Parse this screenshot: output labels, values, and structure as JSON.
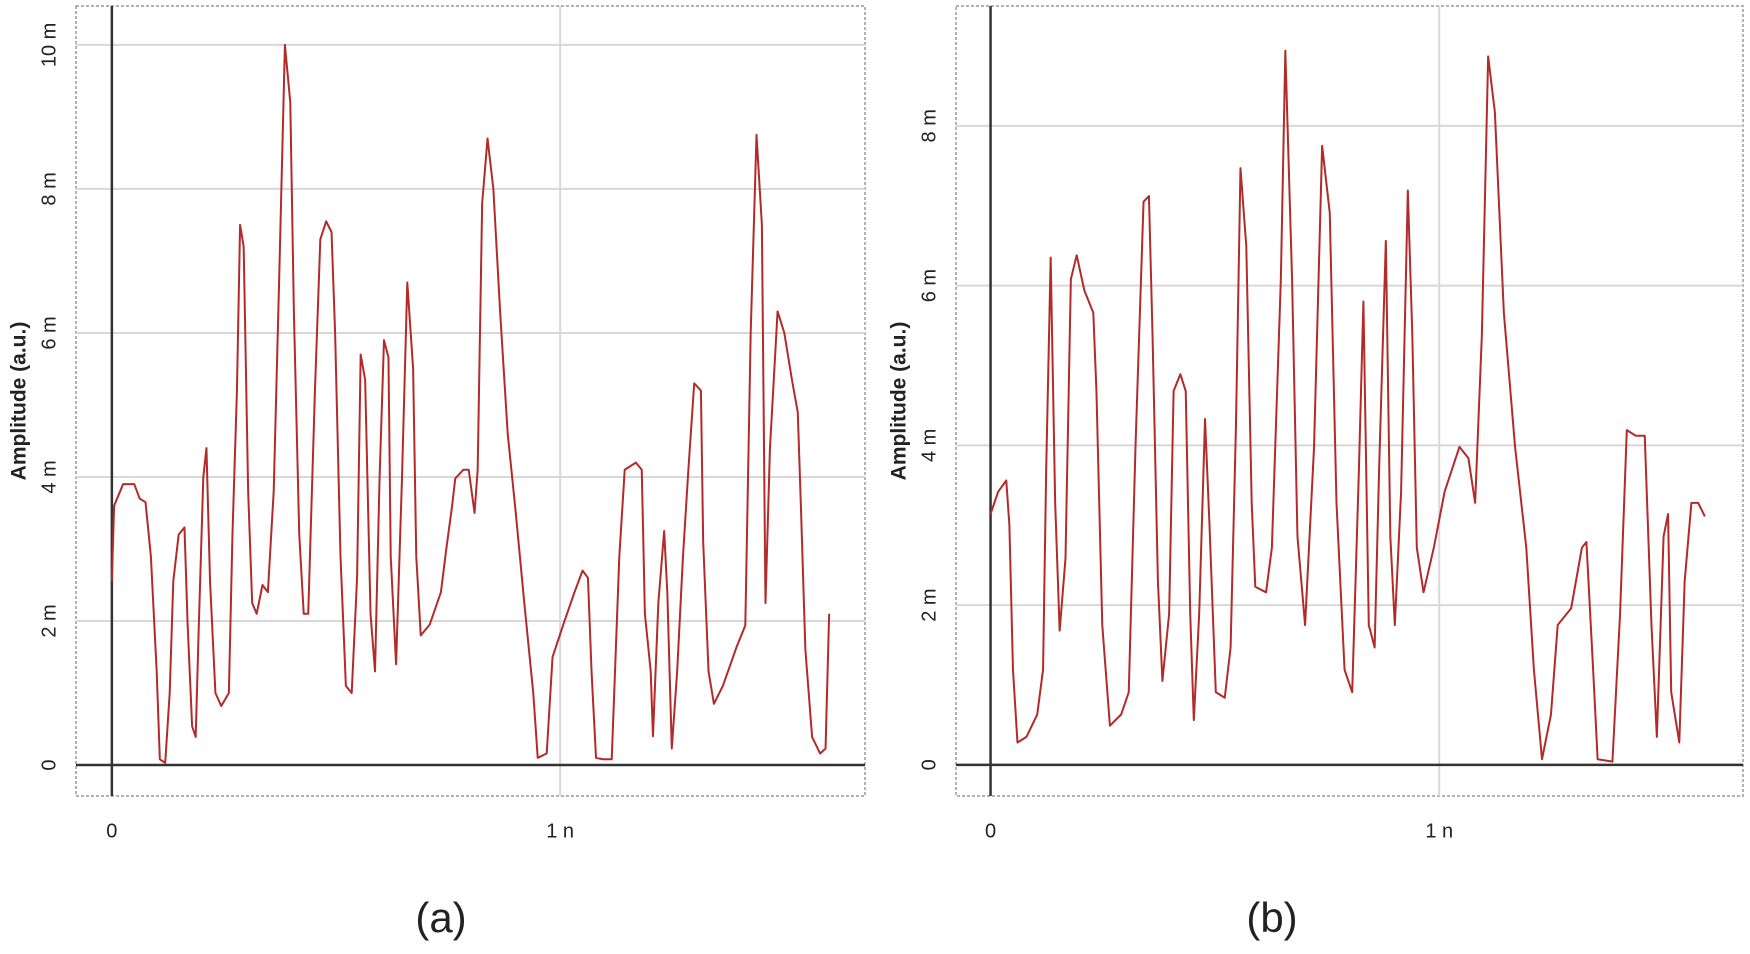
{
  "chart_data": [
    {
      "type": "line",
      "caption": "(a)",
      "y_label": "Amplitude (a.u.)",
      "xlim": [
        -8e-11,
        1.68e-09
      ],
      "ylim": [
        -0.00043,
        0.01054
      ],
      "xticks": [
        0,
        {
          "value": 1e-09,
          "label": "1 n"
        }
      ],
      "yticks": [
        0,
        {
          "value": 0.002,
          "label": "2 m"
        },
        {
          "value": 0.004,
          "label": "4 m"
        },
        {
          "value": 0.006,
          "label": "6 m"
        },
        {
          "value": 0.008,
          "label": "8 m"
        },
        {
          "value": 0.01,
          "label": "10 m"
        }
      ],
      "grid": true,
      "series": [
        {
          "color": "#b22a2a",
          "x": [
            0,
            5e-12,
            2.5e-11,
            5e-11,
            6.2e-11,
            7.5e-11,
            8.7e-11,
            1e-10,
            1.07e-10,
            1.19e-10,
            1.29e-10,
            1.37e-10,
            1.49e-10,
            1.62e-10,
            1.69e-10,
            1.79e-10,
            1.87e-10,
            1.94e-10,
            2.04e-10,
            2.11e-10,
            2.19e-10,
            2.31e-10,
            2.44e-10,
            2.61e-10,
            2.69e-10,
            2.79e-10,
            2.86e-10,
            2.94e-10,
            3.04e-10,
            3.13e-10,
            3.23e-10,
            3.36e-10,
            3.48e-10,
            3.61e-10,
            3.73e-10,
            3.86e-10,
            3.98e-10,
            4.06e-10,
            4.18e-10,
            4.28e-10,
            4.38e-10,
            4.53e-10,
            4.65e-10,
            4.78e-10,
            4.9e-10,
            4.98e-10,
            5.1e-10,
            5.22e-10,
            5.35e-10,
            5.47e-10,
            5.55e-10,
            5.65e-10,
            5.77e-10,
            5.87e-10,
            5.97e-10,
            6.07e-10,
            6.17e-10,
            6.22e-10,
            6.34e-10,
            6.47e-10,
            6.59e-10,
            6.72e-10,
            6.79e-10,
            6.89e-10,
            7.09e-10,
            7.34e-10,
            7.46e-10,
            7.59e-10,
            7.66e-10,
            7.84e-10,
            7.96e-10,
            8.09e-10,
            8.16e-10,
            8.26e-10,
            8.38e-10,
            8.51e-10,
            8.66e-10,
            8.83e-10,
            9.01e-10,
            9.2e-10,
            9.4e-10,
            9.5e-10,
            9.7e-10,
            9.83e-10,
            1.007e-09,
            1.032e-09,
            1.05e-09,
            1.062e-09,
            1.07e-09,
            1.08e-09,
            1.095e-09,
            1.115e-09,
            1.132e-09,
            1.144e-09,
            1.169e-09,
            1.182e-09,
            1.189e-09,
            1.202e-09,
            1.207e-09,
            1.219e-09,
            1.232e-09,
            1.239e-09,
            1.249e-09,
            1.261e-09,
            1.274e-09,
            1.286e-09,
            1.299e-09,
            1.314e-09,
            1.319e-09,
            1.331e-09,
            1.343e-09,
            1.363e-09,
            1.393e-09,
            1.413e-09,
            1.425e-09,
            1.438e-09,
            1.45e-09,
            1.458e-09,
            1.468e-09,
            1.485e-09,
            1.5e-09,
            1.517e-09,
            1.53e-09,
            1.537e-09,
            1.547e-09,
            1.562e-09,
            1.58e-09,
            1.592e-09,
            1.6e-09
          ],
          "values": [
            0.00255,
            0.0036,
            0.0039,
            0.0039,
            0.0037,
            0.00365,
            0.0029,
            0.0013,
            8e-05,
            3e-05,
            0.001,
            0.00255,
            0.0032,
            0.0033,
            0.00195,
            0.00054,
            0.00039,
            0.00195,
            0.004,
            0.0044,
            0.00255,
            0.001,
            0.00082,
            0.001,
            0.0032,
            0.0052,
            0.0075,
            0.0072,
            0.0038,
            0.00225,
            0.0021,
            0.0025,
            0.0024,
            0.0038,
            0.0067,
            0.01,
            0.0092,
            0.0063,
            0.0032,
            0.0021,
            0.0021,
            0.0052,
            0.0073,
            0.00755,
            0.0074,
            0.006,
            0.0029,
            0.0011,
            0.001,
            0.0026,
            0.0057,
            0.00535,
            0.0021,
            0.0013,
            0.00395,
            0.0059,
            0.00566,
            0.0029,
            0.0014,
            0.00395,
            0.0067,
            0.0055,
            0.0029,
            0.0018,
            0.00195,
            0.0024,
            0.003,
            0.0036,
            0.00398,
            0.0041,
            0.0041,
            0.0035,
            0.0041,
            0.0078,
            0.0087,
            0.008,
            0.0063,
            0.0046,
            0.0035,
            0.00225,
            0.001,
            0.0001,
            0.00016,
            0.0015,
            0.00195,
            0.0024,
            0.0027,
            0.0026,
            0.0013,
            0.0001,
            8e-05,
            8e-05,
            0.0029,
            0.0041,
            0.0042,
            0.0041,
            0.0021,
            0.0013,
            0.0004,
            0.00225,
            0.00325,
            0.0024,
            0.00023,
            0.0013,
            0.0029,
            0.0041,
            0.0053,
            0.0052,
            0.0031,
            0.0013,
            0.00085,
            0.0011,
            0.00163,
            0.00194,
            0.006,
            0.00875,
            0.0075,
            0.00225,
            0.0044,
            0.0063,
            0.006,
            0.00535,
            0.0049,
            0.0036,
            0.0016,
            0.00039,
            0.00016,
            0.00023,
            0.0021
          ]
        }
      ]
    },
    {
      "type": "line",
      "caption": "(b)",
      "y_label": "Amplitude (a.u.)",
      "xlim": [
        -7.7e-11,
        1.677e-09
      ],
      "ylim": [
        -0.00039,
        0.0095
      ],
      "xticks": [
        0,
        {
          "value": 1e-09,
          "label": "1 n"
        }
      ],
      "yticks": [
        0,
        {
          "value": 0.002,
          "label": "2 m"
        },
        {
          "value": 0.004,
          "label": "4 m"
        },
        {
          "value": 0.006,
          "label": "6 m"
        },
        {
          "value": 0.008,
          "label": "8 m"
        }
      ],
      "grid": true,
      "series": [
        {
          "color": "#b22a2a",
          "x": [
            0,
            1.7e-11,
            3.5e-11,
            4.2e-11,
            5e-11,
            6e-11,
            8e-11,
            1.04e-10,
            1.17e-10,
            1.24e-10,
            1.34e-10,
            1.44e-10,
            1.54e-10,
            1.67e-10,
            1.79e-10,
            1.92e-10,
            2.09e-10,
            2.29e-10,
            2.36e-10,
            2.49e-10,
            2.66e-10,
            2.91e-10,
            3.08e-10,
            3.23e-10,
            3.41e-10,
            3.53e-10,
            3.61e-10,
            3.73e-10,
            3.83e-10,
            3.98e-10,
            4.08e-10,
            4.23e-10,
            4.35e-10,
            4.45e-10,
            4.53e-10,
            4.65e-10,
            4.78e-10,
            4.88e-10,
            5.02e-10,
            5.22e-10,
            5.35e-10,
            5.47e-10,
            5.57e-10,
            5.7e-10,
            5.82e-10,
            5.9e-10,
            6.14e-10,
            6.27e-10,
            6.47e-10,
            6.57e-10,
            6.72e-10,
            6.84e-10,
            7.01e-10,
            7.21e-10,
            7.39e-10,
            7.56e-10,
            7.71e-10,
            7.89e-10,
            8.06e-10,
            8.21e-10,
            8.31e-10,
            8.43e-10,
            8.56e-10,
            8.66e-10,
            8.81e-10,
            8.91e-10,
            9.01e-10,
            9.15e-10,
            9.3e-10,
            9.4e-10,
            9.5e-10,
            9.65e-10,
            9.88e-10,
            1.012e-09,
            1.045e-09,
            1.065e-09,
            1.08e-09,
            1.095e-09,
            1.109e-09,
            1.124e-09,
            1.144e-09,
            1.169e-09,
            1.194e-09,
            1.211e-09,
            1.229e-09,
            1.249e-09,
            1.264e-09,
            1.294e-09,
            1.318e-09,
            1.328e-09,
            1.343e-09,
            1.353e-09,
            1.386e-09,
            1.403e-09,
            1.418e-09,
            1.438e-09,
            1.458e-09,
            1.473e-09,
            1.485e-09,
            1.5e-09,
            1.51e-09,
            1.517e-09,
            1.535e-09,
            1.547e-09,
            1.562e-09,
            1.577e-09,
            1.592e-09
          ],
          "values": [
            0.00314,
            0.00342,
            0.00356,
            0.003,
            0.00119,
            0.00028,
            0.00035,
            0.00063,
            0.00119,
            0.0037,
            0.00635,
            0.00328,
            0.00168,
            0.00258,
            0.00608,
            0.00638,
            0.00594,
            0.00566,
            0.00468,
            0.00175,
            0.00049,
            0.00063,
            0.00091,
            0.00398,
            0.00705,
            0.00712,
            0.00538,
            0.0023,
            0.00105,
            0.00189,
            0.00468,
            0.00489,
            0.00468,
            0.00189,
            0.00056,
            0.00189,
            0.00433,
            0.003,
            0.00091,
            0.00084,
            0.00147,
            0.00426,
            0.00747,
            0.00649,
            0.00328,
            0.00223,
            0.00216,
            0.00272,
            0.00608,
            0.00894,
            0.00608,
            0.00286,
            0.00175,
            0.00398,
            0.00775,
            0.00691,
            0.00328,
            0.00119,
            0.00091,
            0.0037,
            0.0058,
            0.00175,
            0.00147,
            0.0037,
            0.00656,
            0.00286,
            0.00175,
            0.00342,
            0.00719,
            0.00538,
            0.00272,
            0.00216,
            0.00272,
            0.00342,
            0.00398,
            0.00384,
            0.00328,
            0.00538,
            0.00887,
            0.00817,
            0.00566,
            0.00398,
            0.00272,
            0.00119,
            7e-05,
            0.00063,
            0.00175,
            0.00196,
            0.00272,
            0.00279,
            0.00119,
            7e-05,
            4e-05,
            0.00189,
            0.00419,
            0.00412,
            0.00412,
            0.00175,
            0.00035,
            0.00286,
            0.00314,
            0.00091,
            0.00028,
            0.0023,
            0.00328,
            0.00328,
            0.00311
          ]
        }
      ]
    }
  ]
}
